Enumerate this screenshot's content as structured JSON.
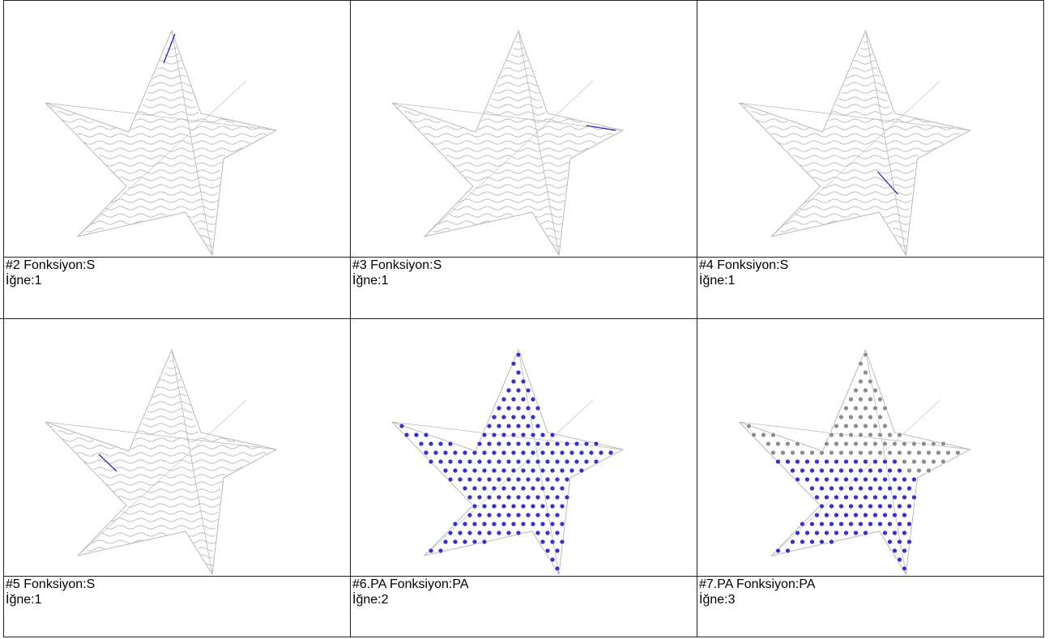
{
  "palette": {
    "stitch_gray": "#b8b8b8",
    "stitch_dark": "#8e8e8e",
    "needle_blue": "#3a2fd0",
    "highlight_line": "#2a20c8"
  },
  "cells": [
    {
      "caption_line1": "#2 Fonksiyon:S",
      "caption_line2": "İğne:1",
      "mode": "outline",
      "highlight": "top-point"
    },
    {
      "caption_line1": "#3 Fonksiyon:S",
      "caption_line2": "İğne:1",
      "mode": "outline",
      "highlight": "right-point"
    },
    {
      "caption_line1": "#4 Fonksiyon:S",
      "caption_line2": "İğne:1",
      "mode": "outline",
      "highlight": "center-lower"
    },
    {
      "caption_line1": "#5 Fonksiyon:S",
      "caption_line2": "İğne:1",
      "mode": "outline",
      "highlight": "center-left"
    },
    {
      "caption_line1": "#6.PA Fonksiyon:PA",
      "caption_line2": "İğne:2",
      "mode": "dots-blue",
      "highlight": "none"
    },
    {
      "caption_line1": "#7.PA Fonksiyon:PA",
      "caption_line2": "İğne:3",
      "mode": "dots-mixed",
      "highlight": "none"
    }
  ]
}
